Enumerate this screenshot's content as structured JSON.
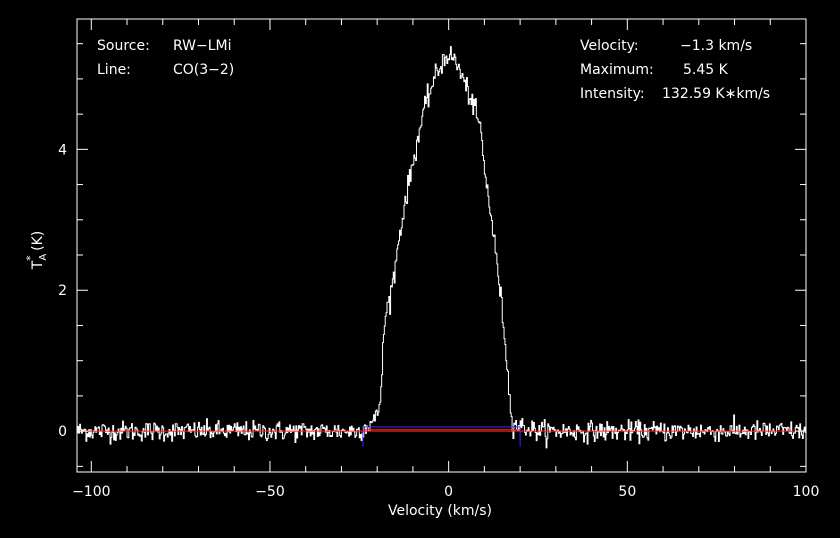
{
  "chart_data": {
    "type": "line",
    "xlabel": "Velocity (km/s)",
    "ylabel_main": "T",
    "ylabel_sub": "A",
    "ylabel_sup": "*",
    "ylabel_unit": " (K)",
    "xlim": [
      -104,
      100
    ],
    "ylim": [
      -0.58,
      5.85
    ],
    "xticks": [
      -100,
      -50,
      0,
      50,
      100
    ],
    "yticks": [
      0,
      2,
      4
    ],
    "xtick_labels": [
      "−100",
      "−50",
      "0",
      "50",
      "100"
    ],
    "ytick_labels": [
      "0",
      "2",
      "4"
    ],
    "grid": false,
    "info_left": [
      {
        "label": "Source:",
        "value": "RW−LMi"
      },
      {
        "label": "Line:",
        "value": "CO(3−2)"
      }
    ],
    "info_right": [
      {
        "label": "Velocity:",
        "value": "−1.3 km/s"
      },
      {
        "label": "Maximum:",
        "value": "5.45 K"
      },
      {
        "label": "Intensity:",
        "value": "132.59 K∗km/s"
      }
    ],
    "noise_rms": 0.07,
    "profile_x": [
      -104,
      -25,
      -22,
      -20,
      -19,
      -18,
      -17,
      -16,
      -15,
      -14,
      -12,
      -10,
      -8,
      -6,
      -4,
      -2,
      -1.3,
      0,
      2,
      4,
      6,
      8,
      9,
      10,
      11,
      12,
      13,
      14,
      15,
      16,
      17,
      18,
      25,
      100
    ],
    "profile_y": [
      0,
      0,
      0.1,
      0.2,
      0.5,
      1.5,
      1.8,
      2.0,
      2.3,
      2.7,
      3.3,
      3.8,
      4.3,
      4.7,
      5.0,
      5.2,
      5.3,
      5.35,
      5.25,
      5.0,
      4.75,
      4.45,
      4.3,
      3.7,
      3.4,
      3.0,
      2.6,
      2.2,
      1.7,
      1.2,
      0.5,
      0.1,
      0,
      0
    ],
    "baseline_window_kms": [
      -24,
      20
    ],
    "baseline_colors": {
      "red": "#ff2020",
      "blue": "#3030ff"
    },
    "spectrum_color": "#ffffff",
    "axis_color": "#ffffff",
    "background": "#000000"
  }
}
